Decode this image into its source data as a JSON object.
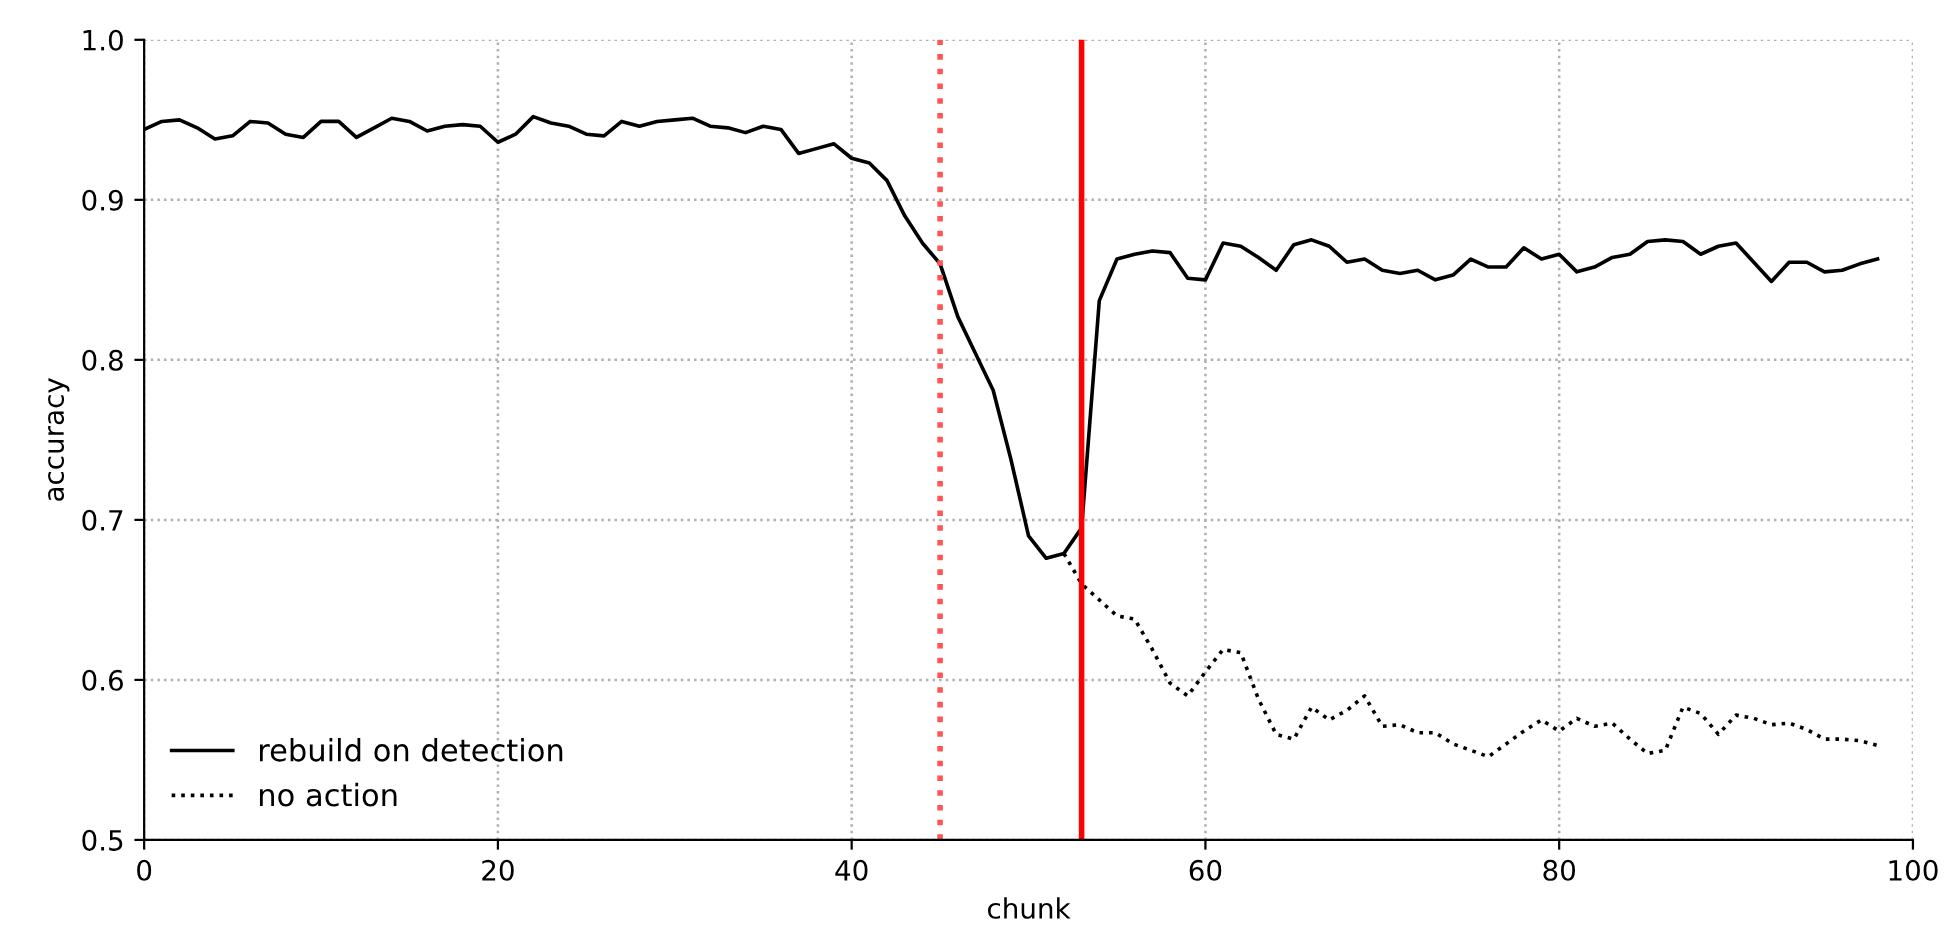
{
  "chart_data": {
    "type": "line",
    "xlabel": "chunk",
    "ylabel": "accuracy",
    "xlim": [
      0,
      100
    ],
    "ylim": [
      0.5,
      1.0
    ],
    "xticks": [
      0,
      20,
      40,
      60,
      80,
      100
    ],
    "yticks": [
      0.5,
      0.6,
      0.7,
      0.8,
      0.9,
      {
        "value": 1,
        "label": "1.0"
      }
    ],
    "grid": true,
    "legend": "bottom left",
    "marker": "none",
    "series": [
      {
        "name": "rebuild on detection",
        "color": "#000000",
        "line_style": "solid",
        "x": [
          0,
          1,
          2,
          3,
          4,
          5,
          6,
          7,
          8,
          9,
          10,
          11,
          12,
          13,
          14,
          15,
          16,
          17,
          18,
          19,
          20,
          21,
          22,
          23,
          24,
          25,
          26,
          27,
          28,
          29,
          30,
          31,
          32,
          33,
          34,
          35,
          36,
          37,
          38,
          39,
          40,
          41,
          42,
          43,
          44,
          45,
          46,
          47,
          48,
          49,
          50,
          51,
          52,
          53,
          54,
          55,
          56,
          57,
          58,
          59,
          60,
          61,
          62,
          63,
          64,
          65,
          66,
          67,
          68,
          69,
          70,
          71,
          72,
          73,
          74,
          75,
          76,
          77,
          78,
          79,
          80,
          81,
          82,
          83,
          84,
          85,
          86,
          87,
          88,
          89,
          90,
          91,
          92,
          93,
          94,
          95,
          96,
          97,
          98
        ],
        "values": [
          0.944,
          0.949,
          0.95,
          0.945,
          0.938,
          0.94,
          0.949,
          0.948,
          0.941,
          0.939,
          0.949,
          0.949,
          0.939,
          0.945,
          0.951,
          0.949,
          0.943,
          0.946,
          0.947,
          0.946,
          0.936,
          0.941,
          0.952,
          0.948,
          0.946,
          0.941,
          0.94,
          0.949,
          0.946,
          0.949,
          0.95,
          0.951,
          0.946,
          0.945,
          0.942,
          0.946,
          0.944,
          0.929,
          0.932,
          0.935,
          0.926,
          0.923,
          0.912,
          0.89,
          0.873,
          0.86,
          0.827,
          0.804,
          0.781,
          0.738,
          0.69,
          0.676,
          0.679,
          0.695,
          0.837,
          0.863,
          0.866,
          0.868,
          0.867,
          0.851,
          0.85,
          0.873,
          0.871,
          0.864,
          0.856,
          0.872,
          0.875,
          0.871,
          0.861,
          0.863,
          0.856,
          0.854,
          0.856,
          0.85,
          0.853,
          0.863,
          0.858,
          0.858,
          0.87,
          0.863,
          0.866,
          0.855,
          0.858,
          0.864,
          0.866,
          0.874,
          0.875,
          0.874,
          0.866,
          0.871,
          0.873,
          0.861,
          0.849,
          0.861,
          0.861,
          0.855,
          0.856,
          0.86,
          0.863
        ]
      },
      {
        "name": "no action",
        "color": "#000000",
        "line_style": "dotted",
        "x": [
          52,
          53,
          54,
          55,
          56,
          57,
          58,
          59,
          60,
          61,
          62,
          63,
          64,
          65,
          66,
          67,
          68,
          69,
          70,
          71,
          72,
          73,
          74,
          75,
          76,
          77,
          78,
          79,
          80,
          81,
          82,
          83,
          84,
          85,
          86,
          87,
          88,
          89,
          90,
          91,
          92,
          93,
          94,
          95,
          96,
          97,
          98
        ],
        "values": [
          0.679,
          0.66,
          0.65,
          0.64,
          0.638,
          0.619,
          0.598,
          0.59,
          0.605,
          0.619,
          0.617,
          0.588,
          0.566,
          0.563,
          0.583,
          0.575,
          0.581,
          0.59,
          0.571,
          0.572,
          0.567,
          0.567,
          0.56,
          0.556,
          0.552,
          0.56,
          0.568,
          0.575,
          0.568,
          0.576,
          0.571,
          0.573,
          0.563,
          0.554,
          0.556,
          0.583,
          0.579,
          0.566,
          0.578,
          0.576,
          0.572,
          0.573,
          0.569,
          0.563,
          0.563,
          0.562,
          0.559
        ]
      }
    ],
    "ref_lines": [
      {
        "axis": "x",
        "value": 45,
        "color": "#ff5555",
        "line_style": "dotted"
      },
      {
        "axis": "x",
        "value": 53,
        "color": "#ff0000",
        "line_style": "solid"
      }
    ]
  }
}
